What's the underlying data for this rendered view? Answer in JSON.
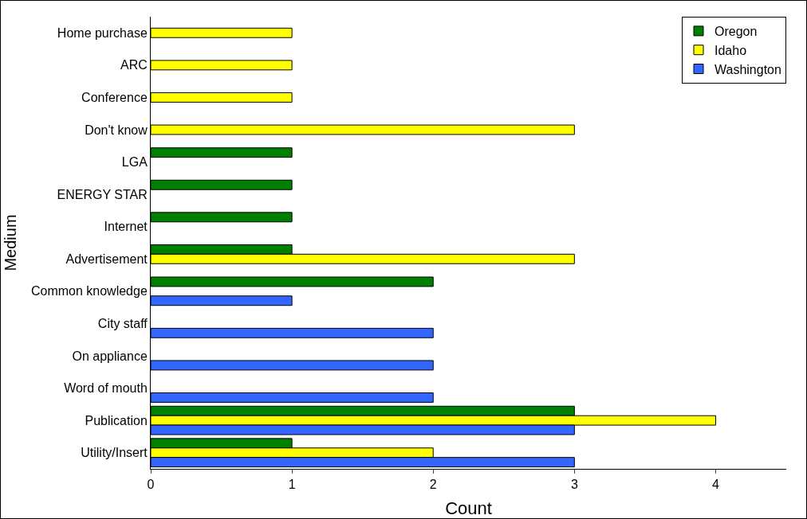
{
  "chart_data": {
    "type": "bar",
    "orientation": "horizontal",
    "xlabel": "Count",
    "ylabel": "Medium",
    "categories": [
      "Home purchase",
      "ARC",
      "Conference",
      "Don't know",
      "LGA",
      "ENERGY STAR",
      "Internet",
      "Advertisement",
      "Common knowledge",
      "City staff",
      "On appliance",
      "Word of mouth",
      "Publication",
      "Utility/Insert"
    ],
    "series": [
      {
        "name": "Oregon",
        "color": "#008000",
        "values": [
          null,
          null,
          null,
          null,
          1,
          1,
          1,
          1,
          2,
          null,
          null,
          null,
          3,
          1
        ]
      },
      {
        "name": "Idaho",
        "color": "#ffff00",
        "values": [
          1,
          1,
          1,
          3,
          null,
          null,
          null,
          3,
          null,
          null,
          null,
          null,
          4,
          2
        ]
      },
      {
        "name": "Washington",
        "color": "#3366ff",
        "values": [
          null,
          null,
          null,
          null,
          null,
          null,
          null,
          null,
          1,
          2,
          2,
          2,
          3,
          3
        ]
      }
    ],
    "xlim": [
      0,
      4.5
    ],
    "xticks": [
      0,
      1,
      2,
      3,
      4
    ],
    "grid": false,
    "legend": "top right"
  }
}
